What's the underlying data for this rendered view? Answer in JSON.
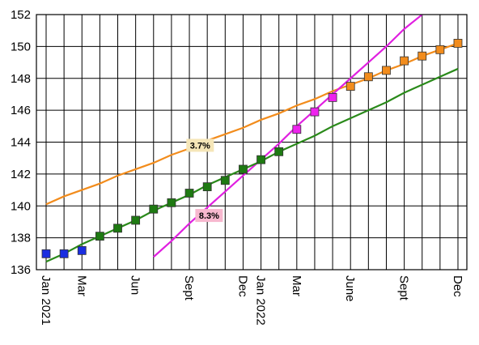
{
  "chart_data": {
    "type": "line",
    "categories": [
      "Jan 2021",
      null,
      "Mar",
      null,
      null,
      "Jun",
      null,
      null,
      "Sept",
      null,
      null,
      "Dec",
      "Jan 2022",
      null,
      "Mar",
      null,
      null,
      "June",
      null,
      null,
      "Sept",
      null,
      null,
      "Dec"
    ],
    "ylim": [
      136,
      152
    ],
    "yticks": [
      136,
      138,
      140,
      142,
      144,
      146,
      148,
      150,
      152
    ],
    "grid": true,
    "trends": [
      {
        "label": "3.7%",
        "color": "#f28c1c",
        "label_color": "#f5e6b8",
        "values": [
          140.1,
          140.6,
          141.0,
          141.4,
          141.9,
          142.3,
          142.7,
          143.2,
          143.6,
          144.1,
          144.5,
          144.9,
          145.4,
          145.8,
          146.3,
          146.7,
          147.2,
          147.6,
          148.0,
          148.5,
          148.9,
          149.4,
          149.8,
          150.2
        ]
      },
      {
        "label": "8.3%",
        "color": "#e020e0",
        "label_color": "#f7b8cf",
        "values": [
          null,
          null,
          null,
          null,
          null,
          null,
          136.8,
          137.8,
          138.9,
          139.9,
          140.9,
          141.9,
          142.9,
          143.9,
          145.0,
          146.0,
          147.0,
          148.0,
          149.0,
          150.0,
          151.1,
          152.0,
          null,
          null
        ]
      },
      {
        "color": "#2a8a1a",
        "values": [
          136.5,
          137.0,
          137.6,
          138.1,
          138.6,
          139.1,
          139.7,
          140.2,
          140.7,
          141.3,
          141.8,
          142.3,
          142.8,
          143.4,
          143.9,
          144.4,
          145.0,
          145.5,
          146.0,
          146.5,
          147.1,
          147.6,
          148.1,
          148.6
        ]
      }
    ],
    "series": [
      {
        "color": "#1a2ee0",
        "values": [
          137.0,
          137.0,
          137.2,
          null,
          null,
          null,
          null,
          null,
          null,
          null,
          null,
          null,
          null,
          null,
          null,
          null,
          null,
          null,
          null,
          null,
          null,
          null,
          null,
          null
        ]
      },
      {
        "color": "#1e7a12",
        "values": [
          null,
          null,
          null,
          138.1,
          138.6,
          139.1,
          139.8,
          140.2,
          140.8,
          141.2,
          141.6,
          142.3,
          142.9,
          143.4,
          null,
          null,
          null,
          null,
          null,
          null,
          null,
          null,
          null,
          null
        ]
      },
      {
        "color": "#ee22ee",
        "values": [
          null,
          null,
          null,
          null,
          null,
          null,
          null,
          null,
          null,
          null,
          null,
          null,
          null,
          null,
          144.8,
          145.9,
          146.8,
          null,
          null,
          null,
          null,
          null,
          null,
          null
        ]
      },
      {
        "color": "#f28c1c",
        "values": [
          null,
          null,
          null,
          null,
          null,
          null,
          null,
          null,
          null,
          null,
          null,
          null,
          null,
          null,
          null,
          null,
          null,
          147.5,
          148.1,
          148.5,
          149.1,
          149.4,
          149.8,
          150.2
        ]
      }
    ]
  }
}
